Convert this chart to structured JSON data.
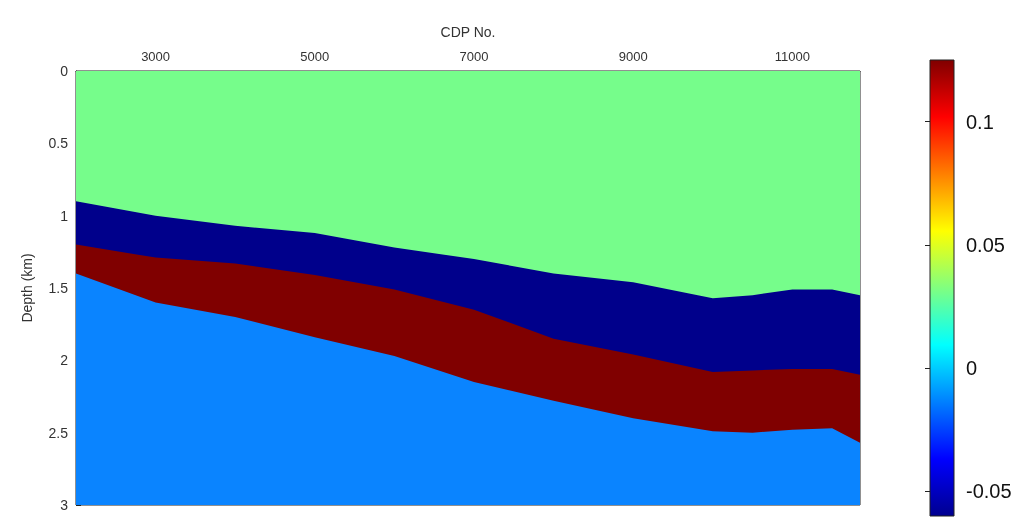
{
  "chart_data": {
    "type": "area",
    "stacked": true,
    "xlabel": "CDP No.",
    "ylabel": "Depth (km)",
    "x": [
      2000,
      3000,
      4000,
      5000,
      6000,
      7000,
      8000,
      9000,
      10000,
      10500,
      11000,
      11500,
      11850
    ],
    "xlim": [
      2000,
      11850
    ],
    "xticks": [
      3000,
      5000,
      7000,
      9000,
      11000
    ],
    "ylim": [
      3,
      0
    ],
    "yticks": [
      0,
      0.5,
      1,
      1.5,
      2,
      2.5,
      3
    ],
    "series": [
      {
        "color": "#76fd8b",
        "values": [
          0.9,
          1.0,
          1.07,
          1.12,
          1.22,
          1.3,
          1.4,
          1.46,
          1.57,
          1.55,
          1.51,
          1.51,
          1.55
        ]
      },
      {
        "color": "#00008b",
        "values": [
          0.3,
          0.29,
          0.26,
          0.29,
          0.29,
          0.35,
          0.45,
          0.5,
          0.51,
          0.52,
          0.55,
          0.55,
          0.55
        ]
      },
      {
        "color": "#800000",
        "values": [
          0.2,
          0.31,
          0.37,
          0.43,
          0.46,
          0.5,
          0.43,
          0.44,
          0.41,
          0.43,
          0.42,
          0.41,
          0.47
        ]
      },
      {
        "color": "#0a84ff",
        "values": [
          1.6,
          1.4,
          1.3,
          1.16,
          1.03,
          0.85,
          0.72,
          0.6,
          0.51,
          0.5,
          0.52,
          0.53,
          0.43
        ]
      }
    ],
    "clim": [
      -0.06,
      0.125
    ],
    "cticks": [
      -0.05,
      0,
      0.05,
      0.1
    ],
    "grid": false
  }
}
